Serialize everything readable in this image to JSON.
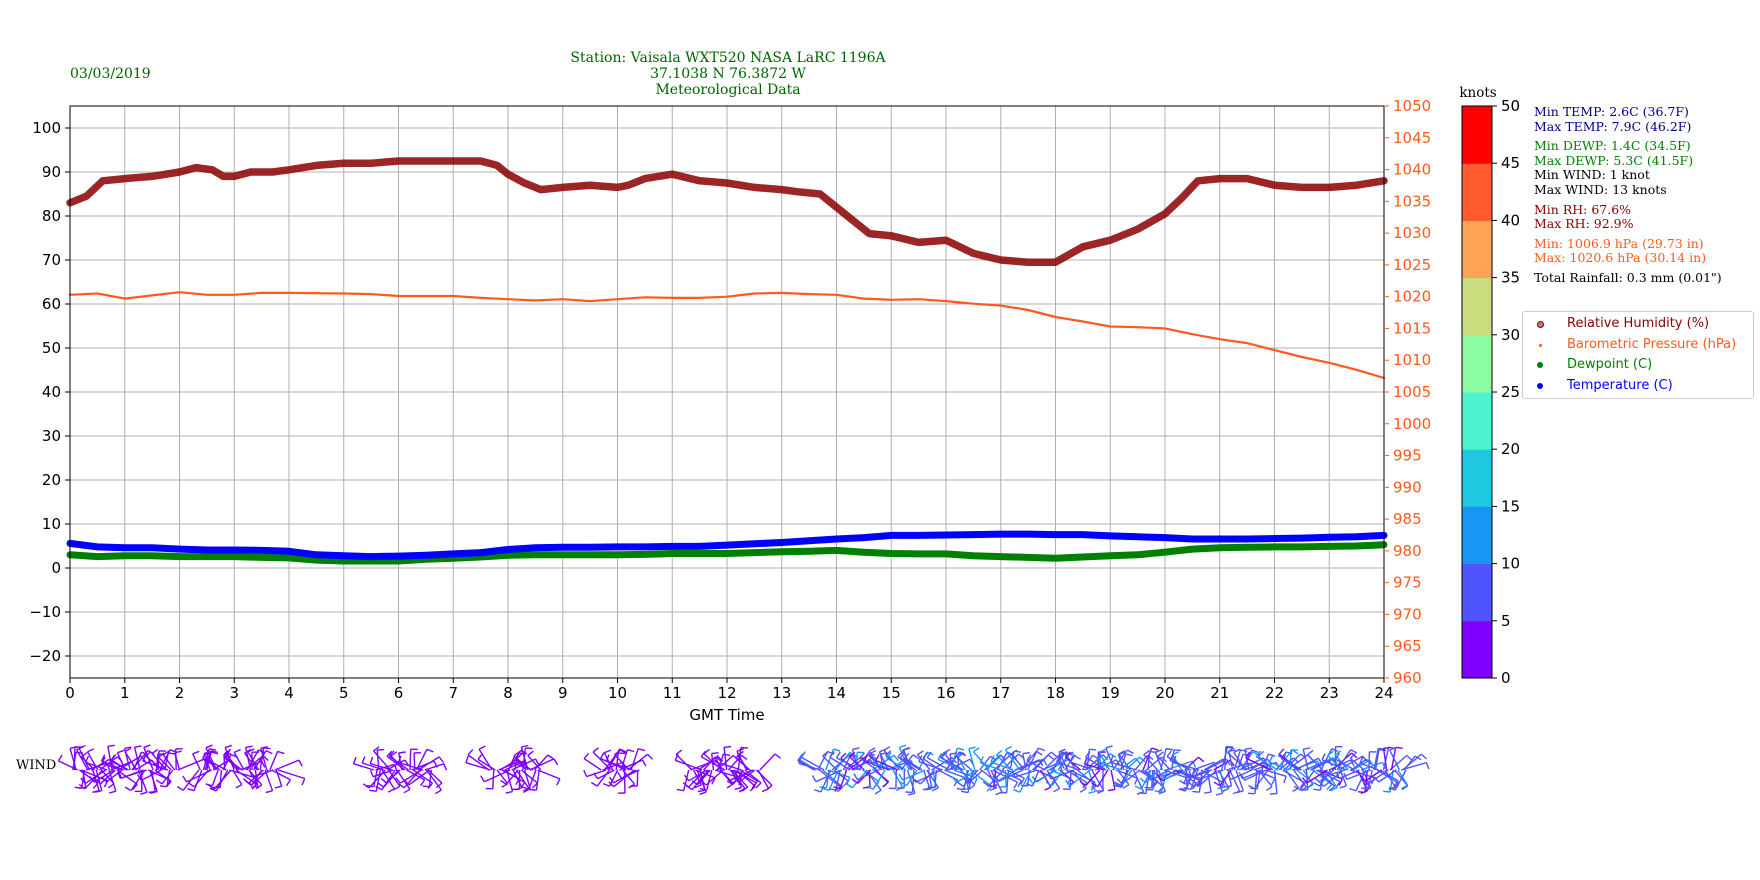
{
  "date": "03/03/2019",
  "title": {
    "line1": "Station:  Vaisala WXT520  NASA LaRC 1196A",
    "line2": "37.1038 N 76.3872 W",
    "line3": "Meteorological Data"
  },
  "stats": {
    "min_temp": "Min TEMP: 2.6C (36.7F)",
    "max_temp": "Max TEMP: 7.9C (46.2F)",
    "min_dewp": "Min DEWP: 1.4C (34.5F)",
    "max_dewp": "Max DEWP: 5.3C (41.5F)",
    "min_wind": "Min WIND: 1 knot",
    "max_wind": "Max WIND: 13 knots",
    "min_rh": "Min RH: 67.6%",
    "max_rh": "Max RH: 92.9%",
    "min_pres": "Min: 1006.9 hPa (29.73 in)",
    "max_pres": "Max: 1020.6 hPa (30.14 in)",
    "rain": "Total Rainfall: 0.3 mm (0.01\")"
  },
  "wind_label": "WIND",
  "colors": {
    "rh": "#8b0000",
    "pressure": "#ff5a1e",
    "dewpoint": "#008000",
    "temperature": "#0000ff",
    "title": "#006400",
    "temp_stats": "#00008b"
  },
  "chart_data": {
    "type": "line",
    "xlabel": "GMT Time",
    "xlim": [
      0,
      24
    ],
    "x_ticks": [
      0,
      1,
      2,
      3,
      4,
      5,
      6,
      7,
      8,
      9,
      10,
      11,
      12,
      13,
      14,
      15,
      16,
      17,
      18,
      19,
      20,
      21,
      22,
      23,
      24
    ],
    "ylim_left": [
      -25,
      105
    ],
    "y_ticks_left": [
      -20,
      -10,
      0,
      10,
      20,
      30,
      40,
      50,
      60,
      70,
      80,
      90,
      100
    ],
    "ylim_right": [
      960,
      1050
    ],
    "y_ticks_right": [
      960,
      965,
      970,
      975,
      980,
      985,
      990,
      995,
      1000,
      1005,
      1010,
      1015,
      1020,
      1025,
      1030,
      1035,
      1040,
      1045,
      1050
    ],
    "grid": true,
    "legend_position": "right",
    "series": [
      {
        "name": "Relative Humidity (%)",
        "axis": "left",
        "color": "#8b0000",
        "x": [
          0,
          0.3,
          0.6,
          1.0,
          1.5,
          2.0,
          2.3,
          2.6,
          2.8,
          3.0,
          3.3,
          3.7,
          4.0,
          4.5,
          5.0,
          5.5,
          6.0,
          6.5,
          7.0,
          7.5,
          7.8,
          8.0,
          8.3,
          8.6,
          9.0,
          9.5,
          10.0,
          10.2,
          10.5,
          11.0,
          11.5,
          12.0,
          12.5,
          13.0,
          13.3,
          13.7,
          14.0,
          14.3,
          14.6,
          15.0,
          15.5,
          16.0,
          16.5,
          17.0,
          17.5,
          18.0,
          18.5,
          19.0,
          19.5,
          20.0,
          20.3,
          20.6,
          21.0,
          21.5,
          22.0,
          22.5,
          23.0,
          23.5,
          24.0
        ],
        "values": [
          83,
          84.5,
          88,
          88.5,
          89,
          90,
          91,
          90.5,
          89,
          89,
          90,
          90,
          90.5,
          91.5,
          92,
          92,
          92.5,
          92.5,
          92.5,
          92.5,
          91.5,
          89.5,
          87.5,
          86,
          86.5,
          87,
          86.5,
          87,
          88.5,
          89.5,
          88,
          87.5,
          86.5,
          86,
          85.5,
          85,
          82,
          79,
          76,
          75.5,
          74,
          74.5,
          71.5,
          70,
          69.5,
          69.5,
          73,
          74.5,
          77,
          80.5,
          84,
          88,
          88.5,
          88.5,
          87,
          86.5,
          86.5,
          87,
          88
        ]
      },
      {
        "name": "Barometric Pressure (hPa)",
        "axis": "right",
        "color": "#ff5a1e",
        "x": [
          0,
          0.5,
          1.0,
          1.5,
          2.0,
          2.5,
          3.0,
          3.5,
          4.0,
          5.0,
          5.5,
          6.0,
          6.5,
          7.0,
          7.5,
          8.0,
          8.5,
          9.0,
          9.5,
          10.0,
          10.5,
          11.0,
          11.5,
          12.0,
          12.5,
          13.0,
          13.5,
          14.0,
          14.5,
          15.0,
          15.5,
          16.0,
          16.5,
          17.0,
          17.5,
          18.0,
          18.5,
          19.0,
          19.5,
          20.0,
          20.5,
          21.0,
          21.5,
          22.0,
          22.5,
          23.0,
          23.5,
          24.0
        ],
        "values": [
          1020.3,
          1020.5,
          1019.7,
          1020.2,
          1020.7,
          1020.3,
          1020.3,
          1020.6,
          1020.6,
          1020.5,
          1020.4,
          1020.1,
          1020.1,
          1020.1,
          1019.8,
          1019.6,
          1019.4,
          1019.6,
          1019.3,
          1019.6,
          1019.9,
          1019.8,
          1019.8,
          1020.0,
          1020.5,
          1020.6,
          1020.4,
          1020.3,
          1019.7,
          1019.5,
          1019.6,
          1019.3,
          1018.9,
          1018.6,
          1017.9,
          1016.8,
          1016.1,
          1015.3,
          1015.2,
          1015.0,
          1014.1,
          1013.3,
          1012.7,
          1011.6,
          1010.5,
          1009.6,
          1008.5,
          1007.2
        ]
      },
      {
        "name": "Dewpoint (C)",
        "axis": "left",
        "color": "#008000",
        "x": [
          0,
          0.5,
          1.0,
          1.5,
          2.0,
          2.5,
          3.0,
          3.5,
          4.0,
          4.5,
          5.0,
          5.5,
          6.0,
          6.5,
          7.0,
          7.5,
          8.0,
          8.5,
          9.0,
          9.5,
          10.0,
          10.5,
          11.0,
          11.5,
          12.0,
          12.5,
          13.0,
          13.5,
          14.0,
          14.5,
          15.0,
          15.5,
          16.0,
          16.5,
          17.0,
          17.5,
          18.0,
          18.5,
          19.0,
          19.5,
          20.0,
          20.5,
          21.0,
          21.5,
          22.0,
          22.5,
          23.0,
          23.5,
          24.0
        ],
        "values": [
          3.0,
          2.6,
          2.8,
          2.8,
          2.6,
          2.6,
          2.6,
          2.4,
          2.3,
          1.8,
          1.6,
          1.6,
          1.6,
          2.0,
          2.2,
          2.5,
          2.9,
          3.0,
          3.0,
          3.0,
          3.0,
          3.1,
          3.3,
          3.3,
          3.3,
          3.5,
          3.7,
          3.8,
          4.0,
          3.6,
          3.3,
          3.2,
          3.2,
          2.8,
          2.6,
          2.4,
          2.2,
          2.5,
          2.8,
          3.0,
          3.6,
          4.3,
          4.6,
          4.7,
          4.8,
          4.8,
          4.9,
          5.0,
          5.3
        ]
      },
      {
        "name": "Temperature (C)",
        "axis": "left",
        "color": "#0000ff",
        "x": [
          0,
          0.5,
          1.0,
          1.5,
          2.0,
          2.5,
          3.0,
          3.5,
          4.0,
          4.5,
          5.0,
          5.5,
          6.0,
          6.5,
          7.0,
          7.5,
          8.0,
          8.5,
          9.0,
          9.5,
          10.0,
          10.5,
          11.0,
          11.5,
          12.0,
          12.5,
          13.0,
          13.5,
          14.0,
          14.5,
          15.0,
          15.5,
          16.0,
          16.5,
          17.0,
          17.5,
          18.0,
          18.5,
          19.0,
          19.5,
          20.0,
          20.5,
          21.0,
          21.5,
          22.0,
          22.5,
          23.0,
          23.5,
          24.0
        ],
        "values": [
          5.6,
          4.8,
          4.6,
          4.6,
          4.3,
          4.1,
          4.1,
          4.0,
          3.8,
          3.0,
          2.8,
          2.6,
          2.7,
          2.9,
          3.2,
          3.5,
          4.2,
          4.6,
          4.7,
          4.7,
          4.8,
          4.8,
          4.9,
          4.9,
          5.2,
          5.5,
          5.8,
          6.2,
          6.6,
          6.9,
          7.4,
          7.4,
          7.5,
          7.6,
          7.7,
          7.7,
          7.6,
          7.6,
          7.3,
          7.1,
          6.9,
          6.6,
          6.6,
          6.6,
          6.7,
          6.8,
          7.0,
          7.1,
          7.4
        ]
      }
    ]
  },
  "colorbar": {
    "label": "knots",
    "ticks": [
      0,
      5,
      10,
      15,
      20,
      25,
      30,
      35,
      40,
      45,
      50
    ],
    "colors": [
      "#7f00ff",
      "#4f54ff",
      "#1996f3",
      "#1dc8e0",
      "#4df3ce",
      "#8bfc9f",
      "#c9dd7f",
      "#ffa256",
      "#ff5b2e",
      "#ff0000"
    ]
  },
  "wind": {
    "groups": [
      {
        "t_start": 0.05,
        "t_end": 0.6,
        "speed": 2
      },
      {
        "t_start": 0.65,
        "t_end": 2.0,
        "speed": 2
      },
      {
        "t_start": 2.35,
        "t_end": 3.8,
        "speed": 2
      },
      {
        "t_start": 5.55,
        "t_end": 6.6,
        "speed": 2
      },
      {
        "t_start": 7.65,
        "t_end": 8.6,
        "speed": 2
      },
      {
        "t_start": 9.7,
        "t_end": 10.4,
        "speed": 2
      },
      {
        "t_start": 11.3,
        "t_end": 12.6,
        "speed": 3
      },
      {
        "t_start": 13.6,
        "t_end": 24.4,
        "speed": 8
      }
    ]
  }
}
